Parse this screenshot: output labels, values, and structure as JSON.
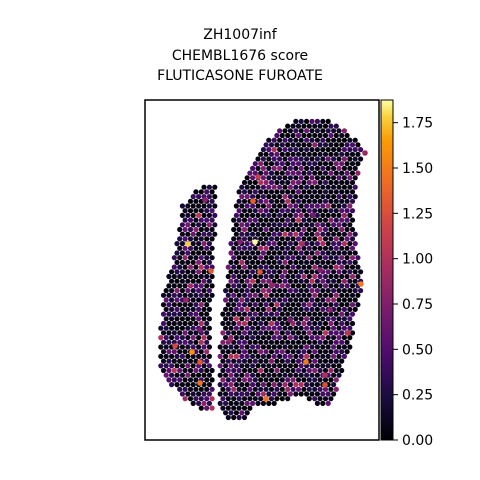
{
  "chart_data": {
    "type": "scatter",
    "title_lines": [
      "ZH1007inf",
      "CHEMBL1676 score",
      "FLUTICASONE FUROATE"
    ],
    "colormap": "inferno",
    "colorbar": {
      "range": [
        0.0,
        1.875
      ],
      "ticks": [
        0.0,
        0.25,
        0.5,
        0.75,
        1.0,
        1.25,
        1.5,
        1.75
      ],
      "tick_labels": [
        "0.00",
        "0.25",
        "0.50",
        "0.75",
        "1.00",
        "1.25",
        "1.50",
        "1.75"
      ]
    },
    "axes": {
      "xticks": "none",
      "yticks": "none",
      "frame": true,
      "grid": false
    },
    "series": [
      {
        "regions": [
          "left-lobe",
          "right-lobe"
        ],
        "point_value_range": [
          0.0,
          1.875
        ],
        "highlighted_points": [
          {
            "x": 255,
            "y": 242,
            "value": 1.87
          },
          {
            "x": 188,
            "y": 244,
            "value": 1.78
          },
          {
            "x": 192,
            "y": 352,
            "value": 1.6
          },
          {
            "x": 361,
            "y": 284,
            "value": 1.5
          },
          {
            "x": 200,
            "y": 383,
            "value": 1.45
          },
          {
            "x": 266,
            "y": 399,
            "value": 1.45
          },
          {
            "x": 306,
            "y": 362,
            "value": 1.5
          },
          {
            "x": 253,
            "y": 201,
            "value": 1.35
          },
          {
            "x": 260,
            "y": 272,
            "value": 1.3
          },
          {
            "x": 211,
            "y": 271,
            "value": 1.3
          },
          {
            "x": 325,
            "y": 385,
            "value": 1.25
          },
          {
            "x": 200,
            "y": 362,
            "value": 1.3
          },
          {
            "x": 175,
            "y": 346,
            "value": 1.2
          },
          {
            "x": 258,
            "y": 177,
            "value": 1.1
          },
          {
            "x": 325,
            "y": 375,
            "value": 1.0
          },
          {
            "x": 348,
            "y": 333,
            "value": 1.05
          },
          {
            "x": 302,
            "y": 244,
            "value": 0.95
          },
          {
            "x": 365,
            "y": 153,
            "value": 0.9
          },
          {
            "x": 186,
            "y": 300,
            "value": 0.85
          },
          {
            "x": 230,
            "y": 340,
            "value": 0.9
          },
          {
            "x": 272,
            "y": 285,
            "value": 0.85
          },
          {
            "x": 330,
            "y": 310,
            "value": 0.8
          },
          {
            "x": 205,
            "y": 200,
            "value": 0.8
          },
          {
            "x": 240,
            "y": 242,
            "value": 0.75
          },
          {
            "x": 320,
            "y": 270,
            "value": 0.75
          },
          {
            "x": 290,
            "y": 320,
            "value": 0.7
          },
          {
            "x": 200,
            "y": 330,
            "value": 0.7
          },
          {
            "x": 313,
            "y": 215,
            "value": 0.7
          }
        ]
      }
    ]
  }
}
